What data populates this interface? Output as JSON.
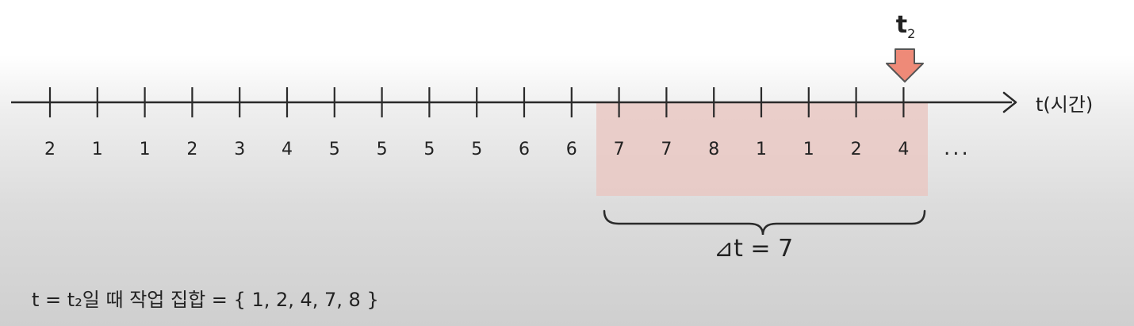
{
  "timeline": {
    "axis_label": "t(시간)",
    "sequence": [
      "2",
      "1",
      "1",
      "2",
      "3",
      "4",
      "5",
      "5",
      "5",
      "5",
      "6",
      "6",
      "7",
      "7",
      "8",
      "1",
      "1",
      "2",
      "4"
    ],
    "ellipsis": "...",
    "marker_label": "t",
    "marker_subscript": "2",
    "window_label": "⊿t = 7",
    "window_start_index": 12,
    "window_end_index": 18
  },
  "caption": "t = t₂일 때 작업 집합 = { 1, 2, 4, 7, 8 }",
  "colors": {
    "window_fill": "#e9c8c3",
    "marker_fill": "#ee8a78",
    "marker_stroke": "#555555",
    "axis_stroke": "#2a2a2a"
  }
}
